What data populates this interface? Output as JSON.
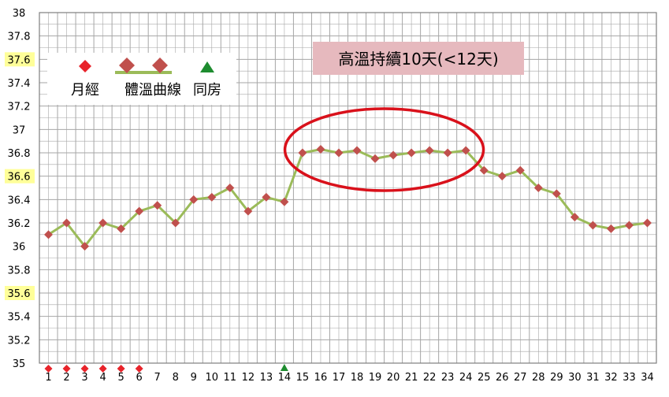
{
  "chart_data": {
    "type": "line",
    "title": "",
    "xlabel": "",
    "ylabel": "",
    "ylim": [
      35,
      38
    ],
    "y_ticks": [
      "35",
      "35.2",
      "35.4",
      "35.6",
      "35.8",
      "36",
      "36.2",
      "36.4",
      "36.6",
      "36.8",
      "37",
      "37.2",
      "37.4",
      "37.6",
      "37.8",
      "38"
    ],
    "y_tick_values": [
      35,
      35.2,
      35.4,
      35.6,
      35.8,
      36,
      36.2,
      36.4,
      36.6,
      36.8,
      37,
      37.2,
      37.4,
      37.6,
      37.8,
      38
    ],
    "highlighted_y_ticks": [
      "35.6",
      "36.6",
      "37.6"
    ],
    "x": [
      "1",
      "2",
      "3",
      "4",
      "5",
      "6",
      "7",
      "8",
      "9",
      "10",
      "11",
      "12",
      "13",
      "14",
      "15",
      "16",
      "17",
      "18",
      "19",
      "20",
      "21",
      "22",
      "23",
      "24",
      "25",
      "26",
      "27",
      "28",
      "29",
      "30",
      "31",
      "32",
      "33",
      "34"
    ],
    "grid": true,
    "legend_position": "top-left",
    "series": [
      {
        "name": "體溫曲線",
        "values": [
          36.1,
          36.2,
          36.0,
          36.2,
          36.15,
          36.3,
          36.35,
          36.2,
          36.4,
          36.42,
          36.5,
          36.3,
          36.42,
          36.38,
          36.8,
          36.83,
          36.8,
          36.82,
          36.75,
          36.78,
          36.8,
          36.82,
          36.8,
          36.82,
          36.65,
          36.6,
          36.65,
          36.5,
          36.45,
          36.25,
          36.18,
          36.15,
          36.18,
          36.2
        ]
      }
    ],
    "markers": {
      "menstruation": {
        "name": "月經",
        "days": [
          "1",
          "2",
          "3",
          "4",
          "5",
          "6"
        ]
      },
      "intercourse": {
        "name": "同房",
        "days": [
          "14"
        ]
      }
    },
    "annotation": {
      "text": "高溫持續10天(<12天)"
    }
  },
  "colors": {
    "line": "#9bbb59",
    "point": "#c0504d",
    "menstruation": "#e8232a",
    "intercourse": "#1e8c2f",
    "grid": "#a6a6a6",
    "ellipse": "#d9111b",
    "annotation_bg": "#e6b9be",
    "tick_highlight_bg": "#ffff99"
  }
}
